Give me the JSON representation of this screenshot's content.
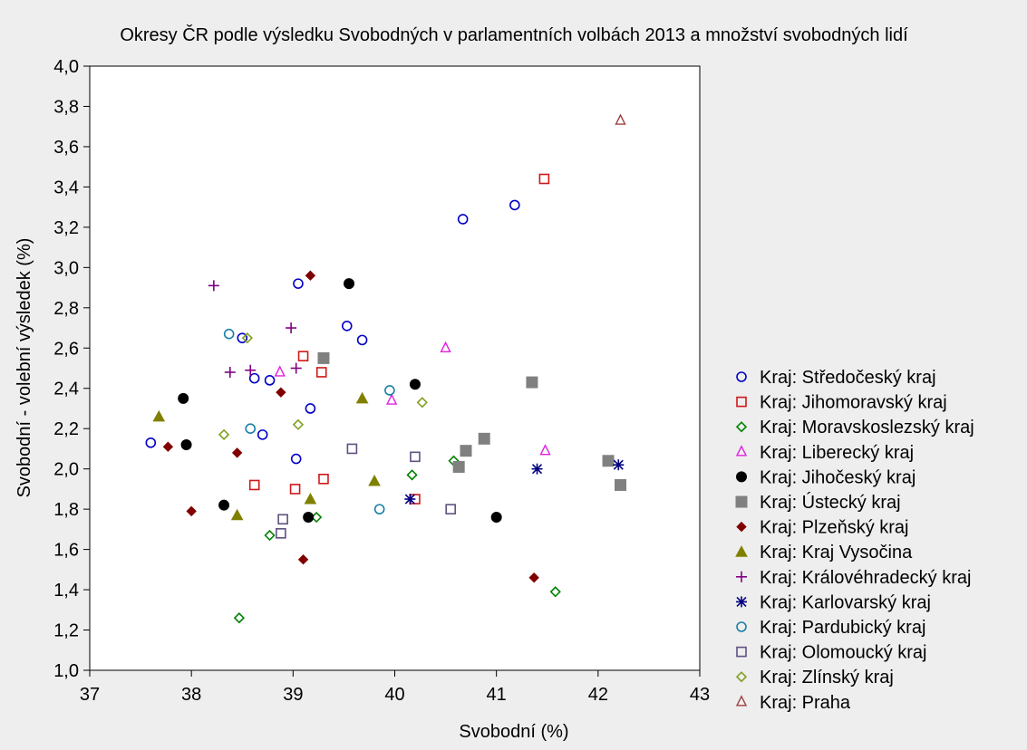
{
  "chart_data": {
    "type": "scatter",
    "title": "Okresy ČR podle výsledku Svobodných v parlamentních volbách 2013 a množství svobodných lidí",
    "xlabel": "Svobodní (%)",
    "ylabel": "Svobodní - volební výsledek (%)",
    "xlim": [
      37,
      43
    ],
    "ylim": [
      1.0,
      4.0
    ],
    "x_ticks": [
      "37",
      "38",
      "39",
      "40",
      "41",
      "42",
      "43"
    ],
    "y_ticks": [
      "1,0",
      "1,2",
      "1,4",
      "1,6",
      "1,8",
      "2,0",
      "2,2",
      "2,4",
      "2,6",
      "2,8",
      "3,0",
      "3,2",
      "3,4",
      "3,6",
      "3,8",
      "4,0"
    ],
    "grid": false,
    "legend_position": "right",
    "series": [
      {
        "name": "Kraj: Středočeský kraj",
        "marker": "circle-open",
        "color": "#0000c8",
        "points": [
          [
            37.6,
            2.13
          ],
          [
            38.5,
            2.65
          ],
          [
            38.62,
            2.45
          ],
          [
            38.7,
            2.17
          ],
          [
            38.77,
            2.44
          ],
          [
            39.03,
            2.05
          ],
          [
            39.05,
            2.92
          ],
          [
            39.17,
            2.3
          ],
          [
            39.53,
            2.71
          ],
          [
            39.68,
            2.64
          ],
          [
            40.67,
            3.24
          ],
          [
            41.18,
            3.31
          ]
        ]
      },
      {
        "name": "Kraj: Jihomoravský kraj",
        "marker": "square-open",
        "color": "#d01818",
        "points": [
          [
            38.62,
            1.92
          ],
          [
            39.02,
            1.9
          ],
          [
            39.1,
            2.56
          ],
          [
            39.28,
            2.48
          ],
          [
            39.3,
            1.95
          ],
          [
            40.2,
            1.85
          ],
          [
            41.47,
            3.44
          ]
        ]
      },
      {
        "name": "Kraj: Moravskoslezský kraj",
        "marker": "diamond-open",
        "color": "#008000",
        "points": [
          [
            38.47,
            1.26
          ],
          [
            38.77,
            1.67
          ],
          [
            39.23,
            1.76
          ],
          [
            40.17,
            1.97
          ],
          [
            40.58,
            2.04
          ],
          [
            41.58,
            1.39
          ]
        ]
      },
      {
        "name": "Kraj: Liberecký kraj",
        "marker": "triangle-open",
        "color": "#e020e0",
        "points": [
          [
            38.87,
            2.48
          ],
          [
            39.97,
            2.34
          ],
          [
            40.5,
            2.6
          ],
          [
            41.48,
            2.09
          ]
        ]
      },
      {
        "name": "Kraj: Jihočeský kraj",
        "marker": "circle-filled",
        "color": "#000000",
        "points": [
          [
            37.92,
            2.35
          ],
          [
            37.95,
            2.12
          ],
          [
            38.32,
            1.82
          ],
          [
            39.15,
            1.76
          ],
          [
            39.55,
            2.92
          ],
          [
            40.2,
            2.42
          ],
          [
            41.0,
            1.76
          ]
        ]
      },
      {
        "name": "Kraj: Ústecký kraj",
        "marker": "square-filled",
        "color": "#808080",
        "points": [
          [
            39.3,
            2.55
          ],
          [
            40.63,
            2.01
          ],
          [
            40.7,
            2.09
          ],
          [
            40.88,
            2.15
          ],
          [
            41.35,
            2.43
          ],
          [
            42.1,
            2.04
          ],
          [
            42.22,
            1.92
          ]
        ]
      },
      {
        "name": "Kraj: Plzeňský kraj",
        "marker": "diamond-filled",
        "color": "#800000",
        "points": [
          [
            37.77,
            2.11
          ],
          [
            38.0,
            1.79
          ],
          [
            38.45,
            2.08
          ],
          [
            38.88,
            2.38
          ],
          [
            39.1,
            1.55
          ],
          [
            39.17,
            2.96
          ],
          [
            41.37,
            1.46
          ]
        ]
      },
      {
        "name": "Kraj: Kraj Vysočina",
        "marker": "triangle-filled",
        "color": "#808000",
        "points": [
          [
            37.68,
            2.26
          ],
          [
            38.45,
            1.77
          ],
          [
            39.17,
            1.85
          ],
          [
            39.68,
            2.35
          ],
          [
            39.8,
            1.94
          ]
        ]
      },
      {
        "name": "Kraj: Královéhradecký kraj",
        "marker": "plus",
        "color": "#800080",
        "points": [
          [
            38.22,
            2.91
          ],
          [
            38.38,
            2.48
          ],
          [
            38.58,
            2.49
          ],
          [
            38.98,
            2.7
          ],
          [
            39.03,
            2.5
          ]
        ]
      },
      {
        "name": "Kraj: Karlovarský kraj",
        "marker": "asterisk",
        "color": "#000080",
        "points": [
          [
            40.15,
            1.85
          ],
          [
            41.4,
            2.0
          ],
          [
            42.2,
            2.02
          ]
        ]
      },
      {
        "name": "Kraj: Pardubický kraj",
        "marker": "circle-open",
        "color": "#1880a8",
        "points": [
          [
            38.37,
            2.67
          ],
          [
            38.58,
            2.2
          ],
          [
            39.85,
            1.8
          ],
          [
            39.95,
            2.39
          ]
        ]
      },
      {
        "name": "Kraj: Olomoucký kraj",
        "marker": "square-open",
        "color": "#605080",
        "points": [
          [
            38.88,
            1.68
          ],
          [
            38.9,
            1.75
          ],
          [
            39.58,
            2.1
          ],
          [
            40.2,
            2.06
          ],
          [
            40.55,
            1.8
          ]
        ]
      },
      {
        "name": "Kraj: Zlínský kraj",
        "marker": "diamond-open",
        "color": "#80a020",
        "points": [
          [
            38.32,
            2.17
          ],
          [
            38.55,
            2.65
          ],
          [
            39.05,
            2.22
          ],
          [
            40.27,
            2.33
          ]
        ]
      },
      {
        "name": "Kraj: Praha",
        "marker": "triangle-open",
        "color": "#a04040",
        "points": [
          [
            42.22,
            3.73
          ]
        ]
      }
    ]
  }
}
